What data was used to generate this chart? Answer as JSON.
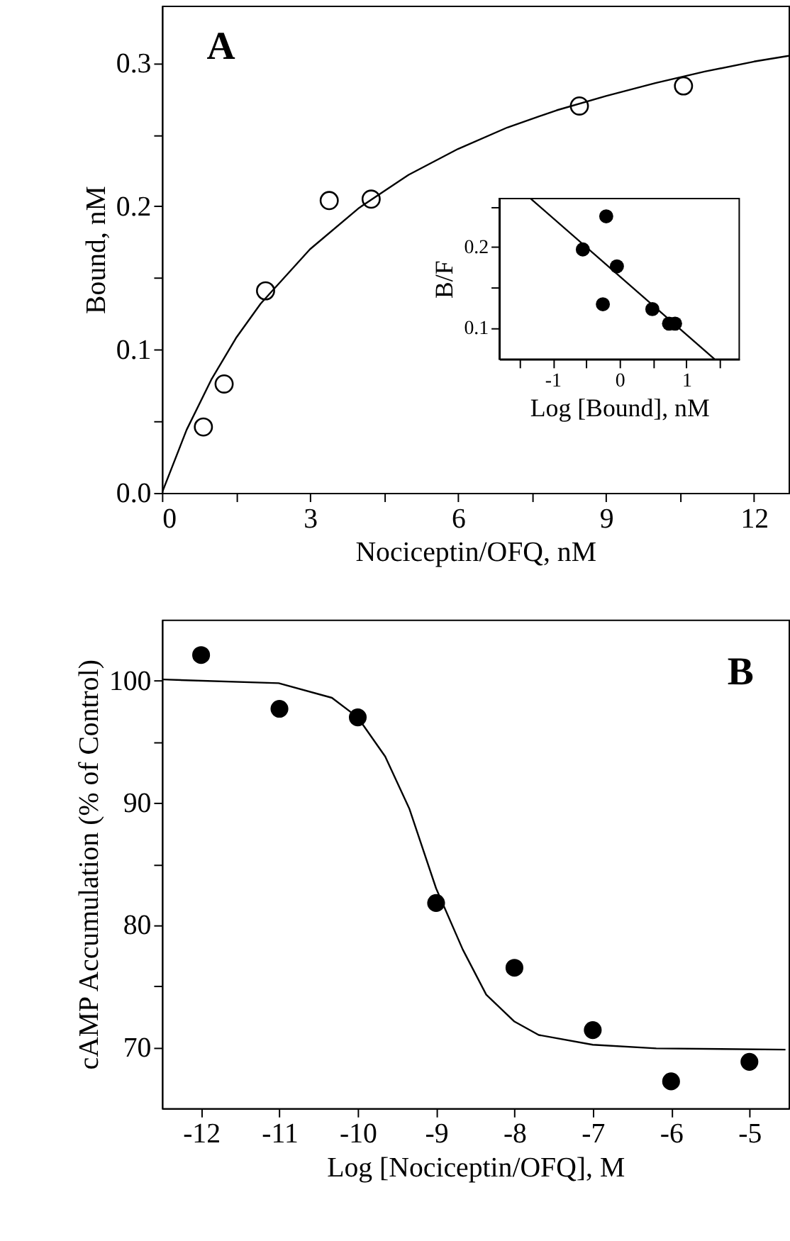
{
  "chart_data": [
    {
      "type": "scatter",
      "xlabel": "Nociceptin/OFQ, nM",
      "ylabel": "Bound, nM",
      "annotations": [
        "A"
      ],
      "xlim": [
        0,
        12.7
      ],
      "ylim": [
        0,
        0.34
      ],
      "xticks": [
        0,
        {
          "value": 1.5,
          "label": null
        },
        3,
        {
          "value": 4.5,
          "label": null
        },
        6,
        {
          "value": 7.5,
          "label": null
        },
        9,
        {
          "value": 10.5,
          "label": null
        },
        12
      ],
      "yticks": [
        {
          "value": 0,
          "label": "0.0"
        },
        {
          "value": 0.05,
          "label": null
        },
        0.1,
        {
          "value": 0.15,
          "label": null
        },
        0.2,
        {
          "value": 0.25,
          "label": null
        },
        0.3
      ],
      "series": [
        {
          "type": "scatter",
          "marker": "circle",
          "color": "#000000",
          "x": [
            0.84,
            1.26,
            2.1,
            3.39,
            4.24,
            8.46,
            10.57
          ],
          "values": [
            0.046,
            0.076,
            0.141,
            0.204,
            0.205,
            0.27,
            0.284
          ]
        },
        {
          "type": "line",
          "color": "#000000",
          "x": [
            0,
            0.5,
            1,
            1.5,
            2,
            3,
            4,
            5,
            6,
            7,
            8,
            9,
            10,
            11,
            12,
            12.7
          ],
          "values": [
            0,
            0.044,
            0.079,
            0.108,
            0.132,
            0.17,
            0.199,
            0.222,
            0.24,
            0.255,
            0.267,
            0.277,
            0.286,
            0.294,
            0.301,
            0.305
          ]
        }
      ]
    },
    {
      "type": "scatter",
      "xlabel": "Log [Bound], nM",
      "ylabel": "B/F",
      "xlim": [
        -1.8,
        1.79
      ],
      "ylim": [
        0.061,
        0.26
      ],
      "xticks": [
        {
          "value": -1.5,
          "label": null
        },
        -1,
        {
          "value": -0.5,
          "label": null
        },
        0,
        {
          "value": 0.5,
          "label": null
        },
        1,
        {
          "value": 1.5,
          "label": null
        }
      ],
      "yticks": [
        0.1,
        {
          "value": 0.15,
          "label": null
        },
        0.2,
        {
          "value": 0.25,
          "label": null
        }
      ],
      "series": [
        {
          "type": "scatter",
          "marker": "circle",
          "color": "#000000",
          "x": [
            -0.55,
            -0.2,
            -0.04,
            -0.25,
            0.49,
            0.74,
            0.83
          ],
          "values": [
            0.197,
            0.238,
            0.176,
            0.129,
            0.123,
            0.105,
            0.105
          ]
        },
        {
          "type": "line",
          "color": "#000000",
          "x": [
            -1.33,
            1.42
          ],
          "values": [
            0.26,
            0.061
          ]
        }
      ]
    },
    {
      "type": "scatter",
      "xlabel": "Log [Nociceptin/OFQ], M",
      "ylabel": "cAMP Accumulation (% of Control)",
      "annotations": [
        "B"
      ],
      "xlim": [
        -12.5,
        -4.5
      ],
      "ylim": [
        65,
        105
      ],
      "xticks": [
        -12,
        -11,
        -10,
        -9,
        -8,
        -7,
        -6,
        -5
      ],
      "yticks": [
        70,
        {
          "value": 75,
          "label": null
        },
        80,
        {
          "value": 85,
          "label": null
        },
        90,
        {
          "value": 95,
          "label": null
        },
        100
      ],
      "series": [
        {
          "type": "scatter",
          "marker": "circle",
          "color": "#000000",
          "x": [
            -12,
            -11,
            -10,
            -9,
            -8,
            -7,
            -6,
            -5
          ],
          "values": [
            102.1,
            97.7,
            97.0,
            81.8,
            76.5,
            71.4,
            67.2,
            68.8
          ]
        },
        {
          "type": "line",
          "color": "#000000",
          "x": [
            -12.49,
            -11.01,
            -10.33,
            -10,
            -9.65,
            -9.34,
            -9,
            -8.66,
            -8.36,
            -8,
            -7.69,
            -7,
            -6.19,
            -4.54
          ],
          "values": [
            100.1,
            99.8,
            98.6,
            97.0,
            93.8,
            89.5,
            83.0,
            78.0,
            74.3,
            72.1,
            71.0,
            70.2,
            69.9,
            69.8
          ]
        }
      ]
    }
  ]
}
